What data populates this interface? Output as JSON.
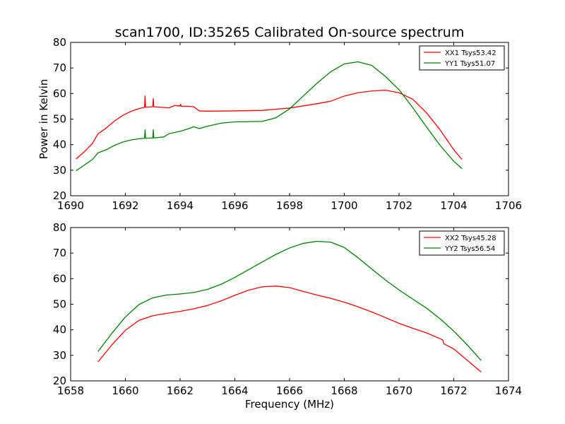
{
  "figure": {
    "title": "scan1700, ID:35265 Calibrated On-source spectrum",
    "xlabel": "Frequency (MHz)"
  },
  "chart_data": [
    {
      "type": "line",
      "title": "scan1700, ID:35265 Calibrated On-source spectrum",
      "xlabel": "",
      "ylabel": "Power in Kelvin",
      "xlim": [
        1690,
        1706
      ],
      "ylim": [
        20,
        80
      ],
      "x_ticks": [
        1690,
        1692,
        1694,
        1696,
        1698,
        1700,
        1702,
        1704,
        1706
      ],
      "y_ticks": [
        20,
        30,
        40,
        50,
        60,
        70,
        80
      ],
      "grid": false,
      "legend_position": "top-right",
      "series": [
        {
          "name": "XX1 Tsys53.42",
          "color": "#ff0000",
          "points": [
            [
              1690.2,
              34.4
            ],
            [
              1690.5,
              37.2
            ],
            [
              1690.8,
              40.5
            ],
            [
              1691.0,
              44.2
            ],
            [
              1691.3,
              46.5
            ],
            [
              1691.6,
              49.2
            ],
            [
              1691.9,
              51.4
            ],
            [
              1692.2,
              53.0
            ],
            [
              1692.5,
              54.1
            ],
            [
              1692.7,
              54.6
            ],
            [
              1692.72,
              59.0
            ],
            [
              1692.74,
              54.6
            ],
            [
              1693.0,
              54.8
            ],
            [
              1693.02,
              58.0
            ],
            [
              1693.04,
              54.8
            ],
            [
              1693.3,
              54.6
            ],
            [
              1693.6,
              54.4
            ],
            [
              1693.8,
              55.3
            ],
            [
              1694.0,
              55.1
            ],
            [
              1694.02,
              55.8
            ],
            [
              1694.04,
              55.0
            ],
            [
              1694.3,
              55.0
            ],
            [
              1694.5,
              54.8
            ],
            [
              1694.7,
              53.2
            ],
            [
              1695.0,
              53.1
            ],
            [
              1696.0,
              53.2
            ],
            [
              1697.0,
              53.4
            ],
            [
              1698.0,
              54.3
            ],
            [
              1699.0,
              56.0
            ],
            [
              1699.5,
              57.0
            ],
            [
              1700.0,
              59.0
            ],
            [
              1700.5,
              60.3
            ],
            [
              1701.0,
              61.0
            ],
            [
              1701.5,
              61.3
            ],
            [
              1702.0,
              60.3
            ],
            [
              1702.5,
              57.8
            ],
            [
              1703.0,
              52.5
            ],
            [
              1703.5,
              45.8
            ],
            [
              1704.0,
              38.0
            ],
            [
              1704.3,
              34.2
            ]
          ]
        },
        {
          "name": "YY1 Tsys51.07",
          "color": "#008000",
          "points": [
            [
              1690.2,
              29.8
            ],
            [
              1690.5,
              32.0
            ],
            [
              1690.8,
              34.2
            ],
            [
              1691.0,
              36.8
            ],
            [
              1691.3,
              38.0
            ],
            [
              1691.6,
              39.7
            ],
            [
              1691.9,
              41.0
            ],
            [
              1692.2,
              41.8
            ],
            [
              1692.5,
              42.3
            ],
            [
              1692.7,
              42.5
            ],
            [
              1692.72,
              45.8
            ],
            [
              1692.74,
              42.5
            ],
            [
              1693.0,
              42.6
            ],
            [
              1693.02,
              45.8
            ],
            [
              1693.04,
              42.6
            ],
            [
              1693.4,
              43.0
            ],
            [
              1693.6,
              44.3
            ],
            [
              1694.0,
              45.2
            ],
            [
              1694.3,
              46.2
            ],
            [
              1694.5,
              47.0
            ],
            [
              1694.7,
              46.3
            ],
            [
              1695.0,
              47.2
            ],
            [
              1695.5,
              48.4
            ],
            [
              1696.0,
              48.9
            ],
            [
              1696.5,
              49.0
            ],
            [
              1697.0,
              49.1
            ],
            [
              1697.5,
              50.5
            ],
            [
              1698.0,
              54.0
            ],
            [
              1698.5,
              59.0
            ],
            [
              1699.0,
              64.0
            ],
            [
              1699.5,
              68.5
            ],
            [
              1700.0,
              71.6
            ],
            [
              1700.5,
              72.4
            ],
            [
              1701.0,
              71.0
            ],
            [
              1701.5,
              66.7
            ],
            [
              1702.0,
              61.5
            ],
            [
              1702.5,
              54.5
            ],
            [
              1703.0,
              47.0
            ],
            [
              1703.5,
              39.7
            ],
            [
              1704.0,
              33.5
            ],
            [
              1704.3,
              30.6
            ]
          ]
        }
      ]
    },
    {
      "type": "line",
      "title": "",
      "xlabel": "Frequency (MHz)",
      "ylabel": "",
      "xlim": [
        1658,
        1674
      ],
      "ylim": [
        20,
        80
      ],
      "x_ticks": [
        1658,
        1660,
        1662,
        1664,
        1666,
        1668,
        1670,
        1672,
        1674
      ],
      "y_ticks": [
        20,
        30,
        40,
        50,
        60,
        70,
        80
      ],
      "grid": false,
      "legend_position": "top-right",
      "series": [
        {
          "name": "XX2 Tsys45.28",
          "color": "#ff0000",
          "points": [
            [
              1659.0,
              27.4
            ],
            [
              1659.5,
              34.0
            ],
            [
              1660.0,
              39.8
            ],
            [
              1660.5,
              43.7
            ],
            [
              1661.0,
              45.5
            ],
            [
              1661.5,
              46.4
            ],
            [
              1662.0,
              47.2
            ],
            [
              1662.5,
              48.2
            ],
            [
              1663.0,
              49.5
            ],
            [
              1663.5,
              51.3
            ],
            [
              1664.0,
              53.5
            ],
            [
              1664.5,
              55.5
            ],
            [
              1665.0,
              56.8
            ],
            [
              1665.5,
              57.1
            ],
            [
              1666.0,
              56.5
            ],
            [
              1666.5,
              55.0
            ],
            [
              1667.0,
              53.6
            ],
            [
              1667.5,
              52.3
            ],
            [
              1668.0,
              50.8
            ],
            [
              1668.5,
              49.0
            ],
            [
              1669.0,
              47.0
            ],
            [
              1669.5,
              44.8
            ],
            [
              1670.0,
              42.5
            ],
            [
              1670.5,
              40.6
            ],
            [
              1671.0,
              38.8
            ],
            [
              1671.5,
              36.5
            ],
            [
              1671.6,
              36.0
            ],
            [
              1671.62,
              35.2
            ],
            [
              1671.64,
              34.5
            ],
            [
              1672.0,
              32.5
            ],
            [
              1672.5,
              28.0
            ],
            [
              1673.0,
              23.5
            ]
          ]
        },
        {
          "name": "YY2 Tsys56.54",
          "color": "#008000",
          "points": [
            [
              1659.0,
              31.5
            ],
            [
              1659.5,
              38.5
            ],
            [
              1660.0,
              45.0
            ],
            [
              1660.5,
              49.9
            ],
            [
              1661.0,
              52.5
            ],
            [
              1661.5,
              53.6
            ],
            [
              1662.0,
              54.0
            ],
            [
              1662.5,
              54.6
            ],
            [
              1663.0,
              55.8
            ],
            [
              1663.5,
              57.8
            ],
            [
              1664.0,
              60.5
            ],
            [
              1664.5,
              63.5
            ],
            [
              1665.0,
              66.5
            ],
            [
              1665.5,
              69.5
            ],
            [
              1666.0,
              72.0
            ],
            [
              1666.5,
              73.8
            ],
            [
              1667.0,
              74.6
            ],
            [
              1667.5,
              74.3
            ],
            [
              1667.7,
              73.5
            ],
            [
              1668.0,
              72.2
            ],
            [
              1668.5,
              68.2
            ],
            [
              1669.0,
              63.8
            ],
            [
              1669.5,
              59.5
            ],
            [
              1670.0,
              55.6
            ],
            [
              1670.5,
              52.0
            ],
            [
              1671.0,
              48.5
            ],
            [
              1671.5,
              44.3
            ],
            [
              1672.0,
              39.5
            ],
            [
              1672.5,
              34.0
            ],
            [
              1673.0,
              28.0
            ]
          ]
        }
      ]
    }
  ]
}
